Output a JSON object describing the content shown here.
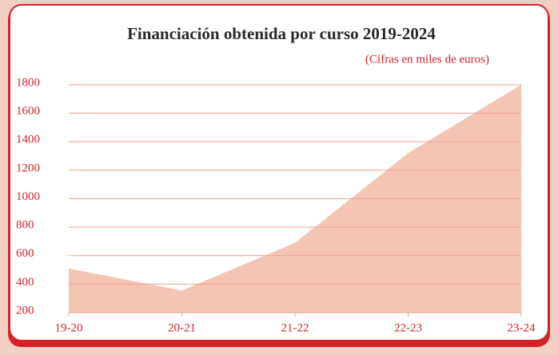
{
  "chart_data": {
    "type": "area",
    "title": "Financiación obtenida por curso 2019-2024",
    "subtitle": "(Cifras en miles de euros)",
    "categories": [
      "19-20",
      "20-21",
      "21-22",
      "22-23",
      "23-24"
    ],
    "values": [
      510,
      355,
      690,
      1320,
      1800
    ],
    "color": "#f5c5b3",
    "ylim": [
      200,
      1800
    ],
    "yticks": [
      200,
      400,
      600,
      800,
      1000,
      1200,
      1400,
      1600,
      1800
    ],
    "grid": true
  }
}
